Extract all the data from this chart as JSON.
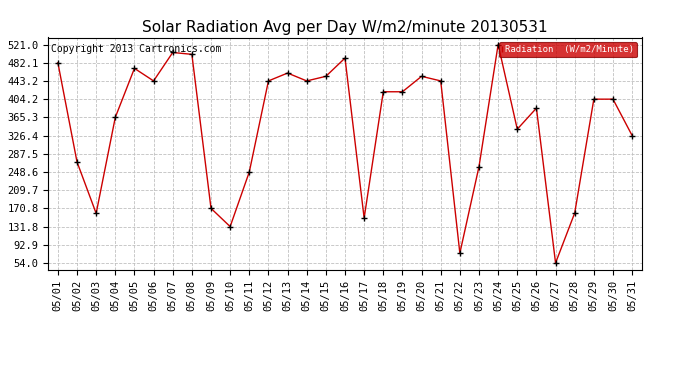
{
  "title": "Solar Radiation Avg per Day W/m2/minute 20130531",
  "copyright": "Copyright 2013 Cartronics.com",
  "legend_label": "Radiation  (W/m2/Minute)",
  "dates": [
    "05/01",
    "05/02",
    "05/03",
    "05/04",
    "05/05",
    "05/06",
    "05/07",
    "05/08",
    "05/09",
    "05/10",
    "05/11",
    "05/12",
    "05/13",
    "05/14",
    "05/15",
    "05/16",
    "05/17",
    "05/18",
    "05/19",
    "05/20",
    "05/21",
    "05/22",
    "05/23",
    "05/24",
    "05/25",
    "05/26",
    "05/27",
    "05/28",
    "05/29",
    "05/30",
    "05/31"
  ],
  "values": [
    482.1,
    270.0,
    160.0,
    365.3,
    470.0,
    443.2,
    504.0,
    500.0,
    170.8,
    131.8,
    248.6,
    443.2,
    460.0,
    443.2,
    453.0,
    492.0,
    150.0,
    420.0,
    420.0,
    453.0,
    443.2,
    75.0,
    260.0,
    521.0,
    340.0,
    385.0,
    54.0,
    160.8,
    404.2,
    404.2,
    326.4
  ],
  "line_color": "#cc0000",
  "marker_color": "#000000",
  "bg_color": "#ffffff",
  "plot_bg_color": "#ffffff",
  "grid_color": "#c0c0c0",
  "legend_bg": "#cc0000",
  "legend_text_color": "#ffffff",
  "title_fontsize": 11,
  "tick_fontsize": 7.5,
  "copyright_fontsize": 7,
  "ymin": 54.0,
  "ymax": 521.0,
  "yticks": [
    54.0,
    92.9,
    131.8,
    170.8,
    209.7,
    248.6,
    287.5,
    326.4,
    365.3,
    404.2,
    443.2,
    482.1,
    521.0
  ]
}
